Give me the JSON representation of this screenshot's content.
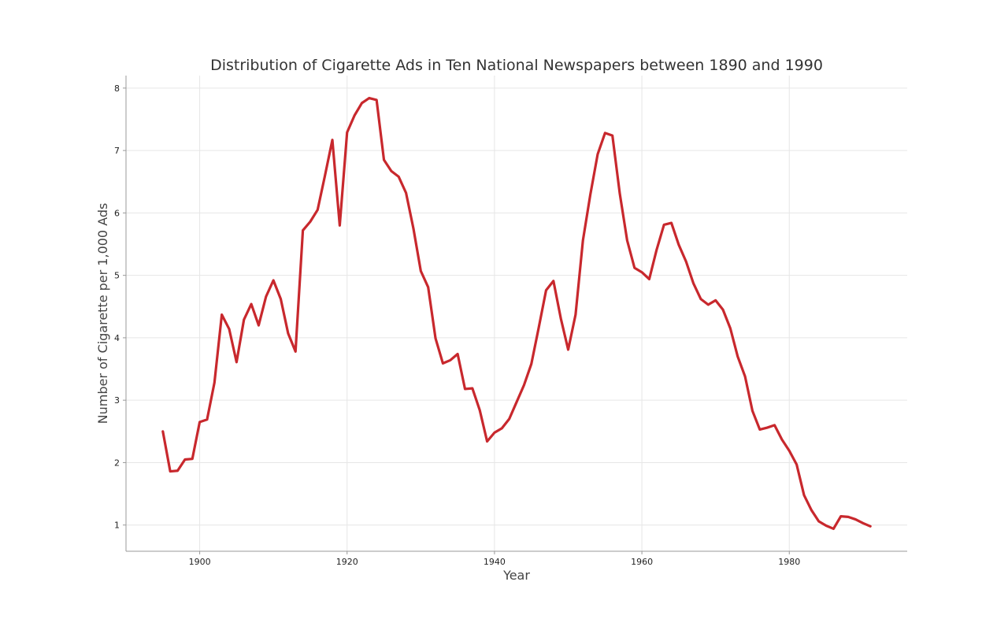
{
  "chart_data": {
    "type": "line",
    "title": "Distribution of Cigarette Ads in Ten National Newspapers between 1890 and 1990",
    "xlabel": "Year",
    "ylabel": "Number of Cigarette per 1,000 Ads",
    "xlim": [
      1890,
      1996
    ],
    "ylim": [
      0.58,
      8.2
    ],
    "xticks": [
      1900,
      1920,
      1940,
      1960,
      1980
    ],
    "yticks": [
      1,
      2,
      3,
      4,
      5,
      6,
      7,
      8
    ],
    "grid": true,
    "legend": "none",
    "series": [
      {
        "color": "#c8282d",
        "x": [
          1895,
          1896,
          1897,
          1898,
          1899,
          1900,
          1901,
          1902,
          1903,
          1904,
          1905,
          1906,
          1907,
          1908,
          1909,
          1910,
          1911,
          1912,
          1913,
          1914,
          1915,
          1916,
          1917,
          1918,
          1919,
          1920,
          1921,
          1922,
          1923,
          1924,
          1925,
          1926,
          1927,
          1928,
          1929,
          1930,
          1931,
          1932,
          1933,
          1934,
          1935,
          1936,
          1937,
          1938,
          1939,
          1940,
          1941,
          1942,
          1943,
          1944,
          1945,
          1946,
          1947,
          1948,
          1949,
          1950,
          1951,
          1952,
          1953,
          1954,
          1955,
          1956,
          1957,
          1958,
          1959,
          1960,
          1961,
          1962,
          1963,
          1964,
          1965,
          1966,
          1967,
          1968,
          1969,
          1970,
          1971,
          1972,
          1973,
          1974,
          1975,
          1976,
          1977,
          1978,
          1979,
          1980,
          1981,
          1982,
          1983,
          1984,
          1985,
          1986,
          1987,
          1988,
          1989,
          1990,
          1991
        ],
        "values": [
          2.5,
          1.86,
          1.87,
          2.05,
          2.06,
          2.65,
          2.69,
          3.28,
          4.37,
          4.14,
          3.61,
          4.29,
          4.54,
          4.2,
          4.66,
          4.92,
          4.62,
          4.07,
          3.78,
          5.72,
          5.86,
          6.05,
          6.6,
          7.17,
          5.8,
          7.29,
          7.56,
          7.76,
          7.84,
          7.81,
          6.85,
          6.67,
          6.58,
          6.32,
          5.75,
          5.07,
          4.81,
          3.99,
          3.59,
          3.64,
          3.74,
          3.18,
          3.19,
          2.84,
          2.34,
          2.48,
          2.55,
          2.7,
          2.97,
          3.24,
          3.58,
          4.16,
          4.76,
          4.91,
          4.31,
          3.81,
          4.37,
          5.56,
          6.29,
          6.94,
          7.28,
          7.24,
          6.31,
          5.56,
          5.12,
          5.05,
          4.94,
          5.41,
          5.81,
          5.84,
          5.49,
          5.22,
          4.87,
          4.62,
          4.53,
          4.6,
          4.45,
          4.15,
          3.7,
          3.38,
          2.83,
          2.53,
          2.56,
          2.6,
          2.37,
          2.19,
          1.97,
          1.48,
          1.24,
          1.06,
          0.99,
          0.94,
          1.14,
          1.13,
          1.09,
          1.03,
          0.98
        ]
      }
    ]
  }
}
